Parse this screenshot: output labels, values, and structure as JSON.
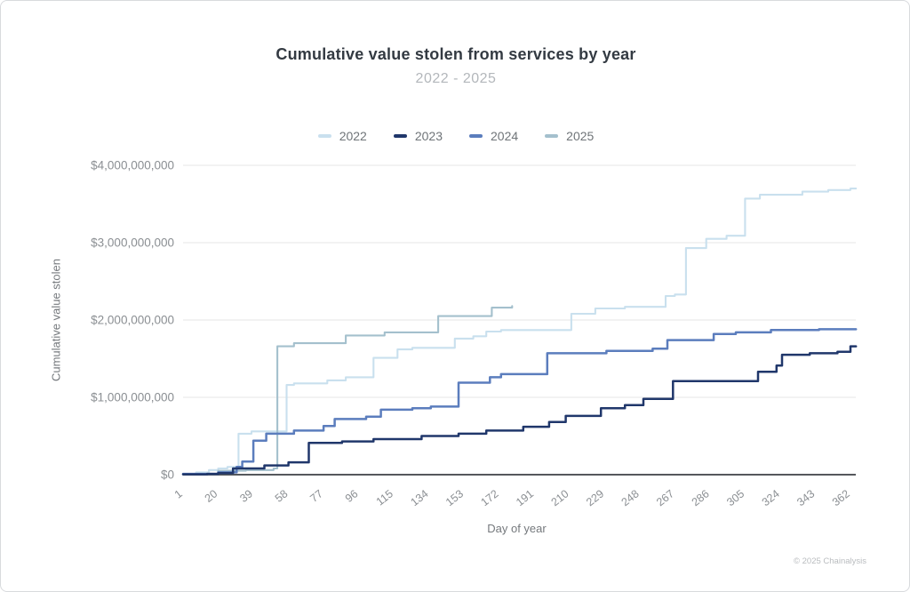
{
  "header": {
    "title": "Cumulative value stolen from services by year",
    "subtitle": "2022 - 2025"
  },
  "axes": {
    "x_label": "Day of year",
    "y_label": "Cumulative value stolen",
    "x_ticks": [
      1,
      20,
      39,
      58,
      77,
      96,
      115,
      134,
      153,
      172,
      191,
      210,
      229,
      248,
      267,
      286,
      305,
      324,
      343,
      362
    ],
    "y_tick_labels": [
      "$0",
      "$1,000,000,000",
      "$2,000,000,000",
      "$3,000,000,000",
      "$4,000,000,000"
    ],
    "y_tick_values_billion": [
      0,
      1,
      2,
      3,
      4
    ]
  },
  "footer": {
    "copyright": "© 2025 Chainalysis"
  },
  "colors": {
    "grid": "#e4e5e6",
    "zero_axis": "#55585c",
    "tick_text": "#8b8f93",
    "series_2022": "#c9e0ee",
    "series_2023": "#20376b",
    "series_2024": "#5b7dbd",
    "series_2025": "#a4c0cd"
  },
  "chart_data": {
    "type": "line",
    "step_interpolation": "step-after",
    "title": "Cumulative value stolen from services by year",
    "subtitle": "2022 - 2025",
    "xlabel": "Day of year",
    "ylabel": "Cumulative value stolen",
    "xlim": [
      1,
      365
    ],
    "ylim_usd": [
      0,
      4000000000
    ],
    "value_unit": "USD billions (cumulative)",
    "legend_position": "top-center",
    "grid": "horizontal-only",
    "series": [
      {
        "name": "2022",
        "color": "#c9e0ee",
        "end_day": 365,
        "points_day_value": [
          [
            1,
            0.01
          ],
          [
            8,
            0.03
          ],
          [
            15,
            0.06
          ],
          [
            20,
            0.08
          ],
          [
            25,
            0.1
          ],
          [
            31,
            0.53
          ],
          [
            38,
            0.56
          ],
          [
            57,
            1.16
          ],
          [
            61,
            1.18
          ],
          [
            79,
            1.22
          ],
          [
            89,
            1.26
          ],
          [
            104,
            1.51
          ],
          [
            117,
            1.62
          ],
          [
            125,
            1.64
          ],
          [
            148,
            1.76
          ],
          [
            158,
            1.79
          ],
          [
            165,
            1.85
          ],
          [
            173,
            1.87
          ],
          [
            211,
            2.08
          ],
          [
            224,
            2.15
          ],
          [
            240,
            2.17
          ],
          [
            262,
            2.31
          ],
          [
            267,
            2.33
          ],
          [
            273,
            2.93
          ],
          [
            284,
            3.05
          ],
          [
            295,
            3.09
          ],
          [
            305,
            3.57
          ],
          [
            313,
            3.62
          ],
          [
            336,
            3.66
          ],
          [
            350,
            3.68
          ],
          [
            362,
            3.7
          ]
        ]
      },
      {
        "name": "2023",
        "color": "#20376b",
        "end_day": 365,
        "points_day_value": [
          [
            1,
            0.005
          ],
          [
            14,
            0.01
          ],
          [
            20,
            0.02
          ],
          [
            28,
            0.08
          ],
          [
            45,
            0.12
          ],
          [
            58,
            0.16
          ],
          [
            69,
            0.41
          ],
          [
            87,
            0.43
          ],
          [
            104,
            0.46
          ],
          [
            130,
            0.5
          ],
          [
            150,
            0.53
          ],
          [
            165,
            0.57
          ],
          [
            185,
            0.62
          ],
          [
            199,
            0.68
          ],
          [
            208,
            0.76
          ],
          [
            227,
            0.86
          ],
          [
            240,
            0.9
          ],
          [
            250,
            0.98
          ],
          [
            266,
            1.21
          ],
          [
            312,
            1.33
          ],
          [
            322,
            1.41
          ],
          [
            325,
            1.55
          ],
          [
            340,
            1.57
          ],
          [
            355,
            1.59
          ],
          [
            362,
            1.66
          ]
        ]
      },
      {
        "name": "2024",
        "color": "#5b7dbd",
        "end_day": 365,
        "points_day_value": [
          [
            1,
            0.01
          ],
          [
            20,
            0.03
          ],
          [
            30,
            0.1
          ],
          [
            33,
            0.17
          ],
          [
            39,
            0.44
          ],
          [
            46,
            0.53
          ],
          [
            61,
            0.57
          ],
          [
            77,
            0.63
          ],
          [
            83,
            0.72
          ],
          [
            100,
            0.75
          ],
          [
            108,
            0.84
          ],
          [
            125,
            0.86
          ],
          [
            135,
            0.88
          ],
          [
            150,
            1.19
          ],
          [
            167,
            1.26
          ],
          [
            173,
            1.3
          ],
          [
            198,
            1.57
          ],
          [
            230,
            1.6
          ],
          [
            255,
            1.63
          ],
          [
            263,
            1.74
          ],
          [
            288,
            1.82
          ],
          [
            300,
            1.84
          ],
          [
            319,
            1.87
          ],
          [
            345,
            1.88
          ]
        ]
      },
      {
        "name": "2025",
        "color": "#a4c0cd",
        "end_day": 179,
        "points_day_value": [
          [
            1,
            0.01
          ],
          [
            20,
            0.05
          ],
          [
            35,
            0.06
          ],
          [
            50,
            0.08
          ],
          [
            52,
            1.66
          ],
          [
            61,
            1.7
          ],
          [
            89,
            1.8
          ],
          [
            110,
            1.84
          ],
          [
            139,
            2.05
          ],
          [
            168,
            2.16
          ],
          [
            179,
            2.18
          ]
        ]
      }
    ]
  }
}
